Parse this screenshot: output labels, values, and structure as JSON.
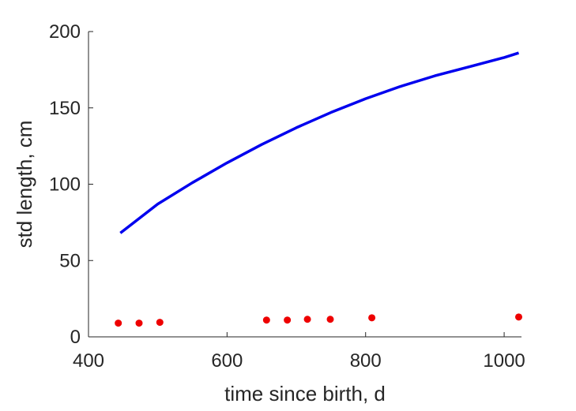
{
  "chart_data": {
    "type": "scatter",
    "xlabel": "time since birth, d",
    "ylabel": "std length, cm",
    "xlim": [
      400,
      1025
    ],
    "ylim": [
      0,
      200
    ],
    "xticks": [
      400,
      600,
      800,
      1000
    ],
    "yticks": [
      0,
      50,
      100,
      150,
      200
    ],
    "xtick_labels": [
      "400",
      "600",
      "800",
      "1000"
    ],
    "ytick_labels": [
      "0",
      "50",
      "100",
      "150",
      "200"
    ],
    "grid": false,
    "series": [
      {
        "kind": "line",
        "color": "#0000ee",
        "x": [
          446,
          500,
          550,
          600,
          650,
          700,
          750,
          800,
          850,
          900,
          950,
          1000,
          1021
        ],
        "y": [
          68,
          87,
          101,
          114,
          126,
          137,
          147,
          156,
          164,
          171,
          177,
          183,
          186
        ]
      },
      {
        "kind": "scatter",
        "color": "#ee0000",
        "x": [
          443,
          473,
          503,
          657,
          687,
          716,
          749,
          809,
          1021
        ],
        "y": [
          9,
          9,
          9.5,
          11,
          11,
          11.5,
          11.5,
          12.5,
          13
        ]
      }
    ]
  }
}
